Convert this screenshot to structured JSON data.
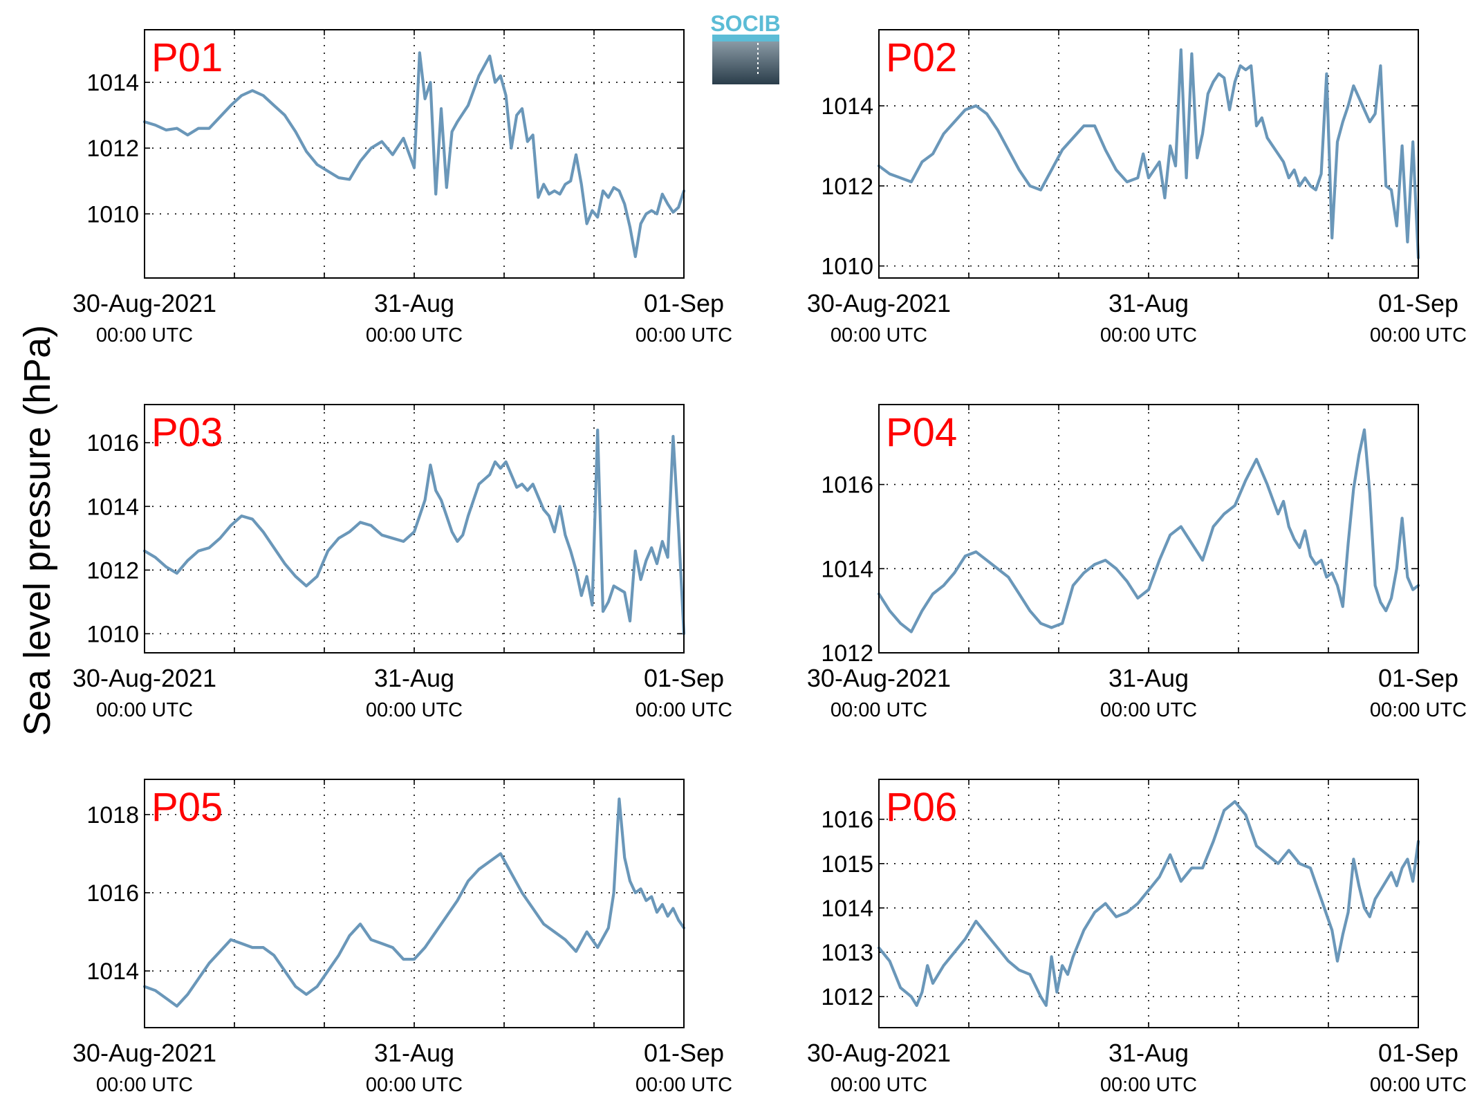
{
  "colors": {
    "line": "#6a97b9",
    "label": "#ff0000",
    "axes": "#000000",
    "logo_text": "#5bbcd6",
    "logo_dark": "#2a3d4a",
    "logo_light": "#8a9aa5"
  },
  "logo": {
    "text": "SOCIB"
  },
  "ylabel": "Sea level pressure (hPa)",
  "x_axis": {
    "ticks": [
      {
        "day": 0,
        "main": "30-Aug-2021",
        "sub": "00:00 UTC"
      },
      {
        "day": 1,
        "main": "31-Aug",
        "sub": "00:00 UTC"
      },
      {
        "day": 2,
        "main": "01-Sep",
        "sub": "00:00 UTC"
      }
    ],
    "grid_step_hours": 8
  },
  "chart_data": [
    {
      "type": "line",
      "label": "P01",
      "xlim": [
        0,
        2
      ],
      "ylim": [
        1008.05,
        1015.6
      ],
      "yticks": [
        1010,
        1012,
        1014
      ],
      "x": [
        0,
        0.04,
        0.08,
        0.12,
        0.16,
        0.2,
        0.24,
        0.28,
        0.32,
        0.36,
        0.4,
        0.44,
        0.48,
        0.52,
        0.56,
        0.6,
        0.64,
        0.68,
        0.72,
        0.76,
        0.8,
        0.84,
        0.88,
        0.92,
        0.96,
        1.0,
        1.02,
        1.04,
        1.06,
        1.08,
        1.1,
        1.12,
        1.14,
        1.16,
        1.2,
        1.24,
        1.28,
        1.3,
        1.32,
        1.34,
        1.36,
        1.38,
        1.4,
        1.42,
        1.44,
        1.46,
        1.48,
        1.5,
        1.52,
        1.54,
        1.56,
        1.58,
        1.6,
        1.62,
        1.64,
        1.66,
        1.68,
        1.7,
        1.72,
        1.74,
        1.76,
        1.78,
        1.8,
        1.82,
        1.84,
        1.86,
        1.88,
        1.9,
        1.92,
        1.94,
        1.96,
        1.98,
        2.0
      ],
      "y": [
        1012.8,
        1012.7,
        1012.55,
        1012.6,
        1012.4,
        1012.6,
        1012.6,
        1012.95,
        1013.3,
        1013.6,
        1013.75,
        1013.6,
        1013.3,
        1013.0,
        1012.5,
        1011.9,
        1011.5,
        1011.3,
        1011.1,
        1011.05,
        1011.6,
        1012.0,
        1012.2,
        1011.8,
        1012.3,
        1011.4,
        1014.9,
        1013.5,
        1014.0,
        1010.6,
        1013.2,
        1010.8,
        1012.5,
        1012.8,
        1013.3,
        1014.2,
        1014.8,
        1014.0,
        1014.2,
        1013.6,
        1012.0,
        1013.0,
        1013.2,
        1012.2,
        1012.4,
        1010.5,
        1010.9,
        1010.6,
        1010.7,
        1010.6,
        1010.9,
        1011.0,
        1011.8,
        1010.9,
        1009.7,
        1010.1,
        1009.9,
        1010.7,
        1010.5,
        1010.8,
        1010.7,
        1010.3,
        1009.6,
        1008.7,
        1009.7,
        1010.0,
        1010.1,
        1010.0,
        1010.6,
        1010.3,
        1010.05,
        1010.2,
        1010.7
      ]
    },
    {
      "type": "line",
      "label": "P02",
      "xlim": [
        0,
        2
      ],
      "ylim": [
        1009.7,
        1015.9
      ],
      "yticks": [
        1010,
        1012,
        1014
      ],
      "x": [
        0,
        0.04,
        0.08,
        0.12,
        0.16,
        0.2,
        0.24,
        0.28,
        0.32,
        0.36,
        0.4,
        0.44,
        0.48,
        0.52,
        0.56,
        0.6,
        0.64,
        0.68,
        0.72,
        0.76,
        0.8,
        0.84,
        0.88,
        0.92,
        0.96,
        0.98,
        1.0,
        1.04,
        1.06,
        1.08,
        1.1,
        1.12,
        1.14,
        1.16,
        1.18,
        1.2,
        1.22,
        1.24,
        1.26,
        1.28,
        1.3,
        1.32,
        1.34,
        1.36,
        1.38,
        1.4,
        1.42,
        1.44,
        1.46,
        1.48,
        1.5,
        1.52,
        1.54,
        1.56,
        1.58,
        1.6,
        1.62,
        1.64,
        1.66,
        1.68,
        1.7,
        1.72,
        1.74,
        1.76,
        1.78,
        1.8,
        1.82,
        1.84,
        1.86,
        1.88,
        1.9,
        1.92,
        1.94,
        1.96,
        1.98,
        2.0
      ],
      "y": [
        1012.5,
        1012.3,
        1012.2,
        1012.1,
        1012.6,
        1012.8,
        1013.3,
        1013.6,
        1013.9,
        1014.0,
        1013.8,
        1013.4,
        1012.9,
        1012.4,
        1012.0,
        1011.9,
        1012.4,
        1012.9,
        1013.2,
        1013.5,
        1013.5,
        1012.9,
        1012.4,
        1012.1,
        1012.2,
        1012.8,
        1012.2,
        1012.6,
        1011.7,
        1013.0,
        1012.5,
        1015.4,
        1012.2,
        1015.3,
        1012.7,
        1013.3,
        1014.3,
        1014.6,
        1014.8,
        1014.7,
        1013.9,
        1014.6,
        1015.0,
        1014.9,
        1015.0,
        1013.5,
        1013.7,
        1013.2,
        1013.0,
        1012.8,
        1012.6,
        1012.2,
        1012.4,
        1012.0,
        1012.2,
        1012.0,
        1011.9,
        1012.3,
        1014.8,
        1010.7,
        1013.1,
        1013.6,
        1014.0,
        1014.5,
        1014.2,
        1013.9,
        1013.6,
        1013.8,
        1015.0,
        1012.0,
        1011.9,
        1011.0,
        1013.0,
        1010.6,
        1013.1,
        1010.2
      ]
    },
    {
      "type": "line",
      "label": "P03",
      "xlim": [
        0,
        2
      ],
      "ylim": [
        1009.4,
        1017.2
      ],
      "yticks": [
        1010,
        1012,
        1014,
        1016
      ],
      "x": [
        0,
        0.04,
        0.08,
        0.12,
        0.16,
        0.2,
        0.24,
        0.28,
        0.32,
        0.36,
        0.4,
        0.44,
        0.48,
        0.52,
        0.56,
        0.6,
        0.64,
        0.68,
        0.72,
        0.76,
        0.8,
        0.84,
        0.88,
        0.92,
        0.96,
        1.0,
        1.02,
        1.04,
        1.06,
        1.08,
        1.1,
        1.12,
        1.14,
        1.16,
        1.18,
        1.2,
        1.24,
        1.28,
        1.3,
        1.32,
        1.34,
        1.36,
        1.38,
        1.4,
        1.42,
        1.44,
        1.46,
        1.48,
        1.5,
        1.52,
        1.54,
        1.56,
        1.58,
        1.6,
        1.62,
        1.64,
        1.66,
        1.68,
        1.7,
        1.72,
        1.74,
        1.76,
        1.78,
        1.8,
        1.82,
        1.84,
        1.86,
        1.88,
        1.9,
        1.92,
        1.94,
        1.96,
        1.98,
        2.0
      ],
      "y": [
        1012.6,
        1012.4,
        1012.1,
        1011.9,
        1012.3,
        1012.6,
        1012.7,
        1013.0,
        1013.4,
        1013.7,
        1013.6,
        1013.2,
        1012.7,
        1012.2,
        1011.8,
        1011.5,
        1011.8,
        1012.6,
        1013.0,
        1013.2,
        1013.5,
        1013.4,
        1013.1,
        1013.0,
        1012.9,
        1013.2,
        1013.7,
        1014.2,
        1015.3,
        1014.5,
        1014.2,
        1013.7,
        1013.2,
        1012.9,
        1013.1,
        1013.7,
        1014.7,
        1015.0,
        1015.4,
        1015.2,
        1015.4,
        1015.0,
        1014.6,
        1014.7,
        1014.5,
        1014.7,
        1014.3,
        1013.9,
        1013.7,
        1013.2,
        1014.0,
        1013.1,
        1012.6,
        1012.0,
        1011.2,
        1011.8,
        1010.9,
        1016.4,
        1010.7,
        1011.0,
        1011.5,
        1011.4,
        1011.3,
        1010.4,
        1012.6,
        1011.7,
        1012.3,
        1012.7,
        1012.2,
        1012.9,
        1012.4,
        1016.2,
        1013.3,
        1010.0
      ]
    },
    {
      "type": "line",
      "label": "P04",
      "xlim": [
        0,
        2
      ],
      "ylim": [
        1012.0,
        1017.9
      ],
      "yticks": [
        1012,
        1014,
        1016
      ],
      "x": [
        0,
        0.04,
        0.08,
        0.12,
        0.16,
        0.2,
        0.24,
        0.28,
        0.32,
        0.36,
        0.4,
        0.44,
        0.48,
        0.52,
        0.56,
        0.6,
        0.64,
        0.68,
        0.72,
        0.76,
        0.8,
        0.84,
        0.88,
        0.92,
        0.96,
        1.0,
        1.04,
        1.08,
        1.12,
        1.16,
        1.2,
        1.24,
        1.28,
        1.32,
        1.36,
        1.4,
        1.44,
        1.48,
        1.5,
        1.52,
        1.54,
        1.56,
        1.58,
        1.6,
        1.62,
        1.64,
        1.66,
        1.68,
        1.7,
        1.72,
        1.74,
        1.76,
        1.78,
        1.8,
        1.82,
        1.84,
        1.86,
        1.88,
        1.9,
        1.92,
        1.94,
        1.96,
        1.98,
        2.0
      ],
      "y": [
        1013.4,
        1013.0,
        1012.7,
        1012.5,
        1013.0,
        1013.4,
        1013.6,
        1013.9,
        1014.3,
        1014.4,
        1014.2,
        1014.0,
        1013.8,
        1013.4,
        1013.0,
        1012.7,
        1012.6,
        1012.7,
        1013.6,
        1013.9,
        1014.1,
        1014.2,
        1014.0,
        1013.7,
        1013.3,
        1013.5,
        1014.2,
        1014.8,
        1015.0,
        1014.6,
        1014.2,
        1015.0,
        1015.3,
        1015.5,
        1016.1,
        1016.6,
        1016.0,
        1015.3,
        1015.6,
        1015.0,
        1014.7,
        1014.5,
        1014.9,
        1014.3,
        1014.1,
        1014.2,
        1013.8,
        1013.9,
        1013.6,
        1013.1,
        1014.6,
        1015.9,
        1016.7,
        1017.3,
        1015.8,
        1013.6,
        1013.2,
        1013.0,
        1013.3,
        1014.0,
        1015.2,
        1013.8,
        1013.5,
        1013.6
      ]
    },
    {
      "type": "line",
      "label": "P05",
      "xlim": [
        0,
        2
      ],
      "ylim": [
        1012.55,
        1018.9
      ],
      "yticks": [
        1014,
        1016,
        1018
      ],
      "x": [
        0,
        0.04,
        0.08,
        0.12,
        0.16,
        0.2,
        0.24,
        0.28,
        0.32,
        0.36,
        0.4,
        0.44,
        0.48,
        0.52,
        0.56,
        0.6,
        0.64,
        0.68,
        0.72,
        0.76,
        0.8,
        0.84,
        0.88,
        0.92,
        0.96,
        1.0,
        1.04,
        1.08,
        1.12,
        1.16,
        1.2,
        1.24,
        1.28,
        1.32,
        1.36,
        1.4,
        1.44,
        1.48,
        1.52,
        1.56,
        1.6,
        1.64,
        1.68,
        1.72,
        1.74,
        1.76,
        1.78,
        1.8,
        1.82,
        1.84,
        1.86,
        1.88,
        1.9,
        1.92,
        1.94,
        1.96,
        1.98,
        2.0
      ],
      "y": [
        1013.6,
        1013.5,
        1013.3,
        1013.1,
        1013.4,
        1013.8,
        1014.2,
        1014.5,
        1014.8,
        1014.7,
        1014.6,
        1014.6,
        1014.4,
        1014.0,
        1013.6,
        1013.4,
        1013.6,
        1014.0,
        1014.4,
        1014.9,
        1015.2,
        1014.8,
        1014.7,
        1014.6,
        1014.3,
        1014.3,
        1014.6,
        1015.0,
        1015.4,
        1015.8,
        1016.3,
        1016.6,
        1016.8,
        1017.0,
        1016.5,
        1016.0,
        1015.6,
        1015.2,
        1015.0,
        1014.8,
        1014.5,
        1015.0,
        1014.6,
        1015.1,
        1016.0,
        1018.4,
        1016.9,
        1016.3,
        1016.0,
        1016.1,
        1015.8,
        1015.9,
        1015.5,
        1015.7,
        1015.4,
        1015.6,
        1015.3,
        1015.1
      ]
    },
    {
      "type": "line",
      "label": "P06",
      "xlim": [
        0,
        2
      ],
      "ylim": [
        1011.3,
        1016.9
      ],
      "yticks": [
        1012,
        1013,
        1014,
        1015,
        1016
      ],
      "x": [
        0,
        0.04,
        0.08,
        0.12,
        0.14,
        0.16,
        0.18,
        0.2,
        0.24,
        0.28,
        0.32,
        0.36,
        0.4,
        0.44,
        0.48,
        0.52,
        0.56,
        0.6,
        0.62,
        0.64,
        0.66,
        0.68,
        0.7,
        0.72,
        0.76,
        0.8,
        0.84,
        0.88,
        0.92,
        0.96,
        1.0,
        1.04,
        1.08,
        1.12,
        1.16,
        1.2,
        1.24,
        1.28,
        1.32,
        1.36,
        1.4,
        1.44,
        1.48,
        1.52,
        1.56,
        1.6,
        1.64,
        1.68,
        1.7,
        1.72,
        1.74,
        1.76,
        1.78,
        1.8,
        1.82,
        1.84,
        1.86,
        1.88,
        1.9,
        1.92,
        1.94,
        1.96,
        1.98,
        2.0
      ],
      "y": [
        1013.1,
        1012.8,
        1012.2,
        1012.0,
        1011.8,
        1012.1,
        1012.7,
        1012.3,
        1012.7,
        1013.0,
        1013.3,
        1013.7,
        1013.4,
        1013.1,
        1012.8,
        1012.6,
        1012.5,
        1012.0,
        1011.8,
        1012.9,
        1012.1,
        1012.7,
        1012.5,
        1012.9,
        1013.5,
        1013.9,
        1014.1,
        1013.8,
        1013.9,
        1014.1,
        1014.4,
        1014.7,
        1015.2,
        1014.6,
        1014.9,
        1014.9,
        1015.5,
        1016.2,
        1016.4,
        1016.1,
        1015.4,
        1015.2,
        1015.0,
        1015.3,
        1015.0,
        1014.9,
        1014.2,
        1013.5,
        1012.8,
        1013.4,
        1013.9,
        1015.1,
        1014.5,
        1014.0,
        1013.8,
        1014.2,
        1014.4,
        1014.6,
        1014.8,
        1014.5,
        1014.9,
        1015.1,
        1014.6,
        1015.5
      ]
    }
  ]
}
